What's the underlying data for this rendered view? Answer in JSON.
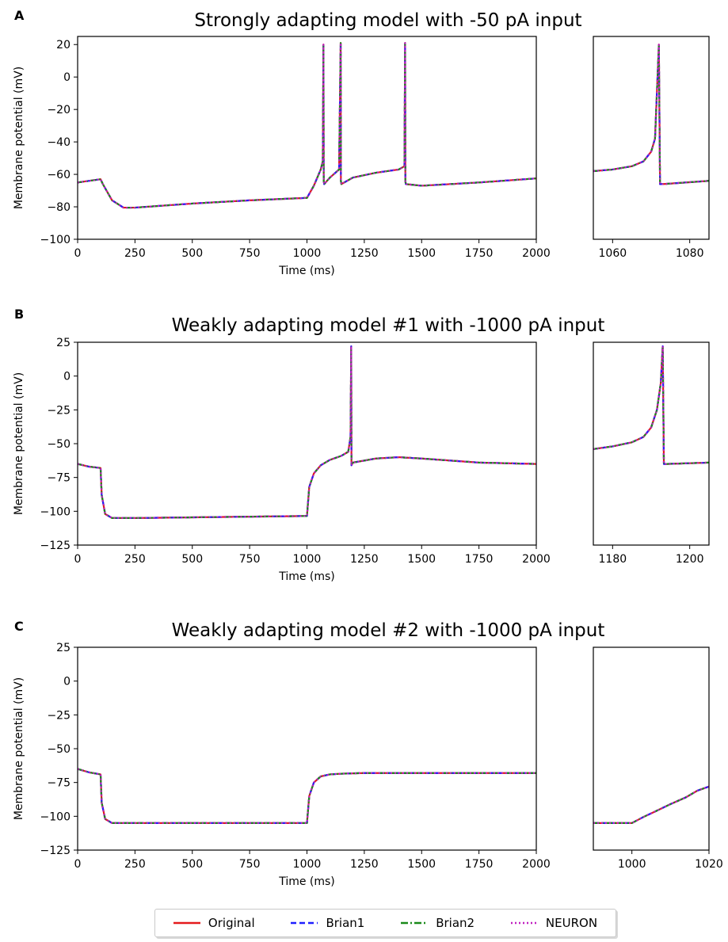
{
  "panels": [
    {
      "letter": "A",
      "title": "Strongly adapting model with -50 pA input",
      "main": {
        "xlabel": "Time (ms)",
        "ylabel": "Membrane potential (mV)",
        "xlim": [
          0,
          2000
        ],
        "ylim": [
          -100,
          25
        ],
        "xticks": [
          0,
          250,
          500,
          750,
          1000,
          1250,
          1500,
          1750,
          2000
        ],
        "yticks": [
          -100,
          -80,
          -60,
          -40,
          -20,
          0,
          20
        ]
      },
      "zoom": {
        "xlim": [
          1055,
          1085
        ],
        "xticks": [
          1060,
          1080
        ]
      }
    },
    {
      "letter": "B",
      "title": "Weakly adapting model #1 with -1000 pA input",
      "main": {
        "xlabel": "Time (ms)",
        "ylabel": "Membrane potential (mV)",
        "xlim": [
          0,
          2000
        ],
        "ylim": [
          -125,
          25
        ],
        "xticks": [
          0,
          250,
          500,
          750,
          1000,
          1250,
          1500,
          1750,
          2000
        ],
        "yticks": [
          -125,
          -100,
          -75,
          -50,
          -25,
          0,
          25
        ]
      },
      "zoom": {
        "xlim": [
          1175,
          1205
        ],
        "xticks": [
          1180,
          1200
        ]
      }
    },
    {
      "letter": "C",
      "title": "Weakly adapting model #2 with -1000 pA input",
      "main": {
        "xlabel": "Time (ms)",
        "ylabel": "Membrane potential (mV)",
        "xlim": [
          0,
          2000
        ],
        "ylim": [
          -125,
          25
        ],
        "xticks": [
          0,
          250,
          500,
          750,
          1000,
          1250,
          1500,
          1750,
          2000
        ],
        "yticks": [
          -125,
          -100,
          -75,
          -50,
          -25,
          0,
          25
        ]
      },
      "zoom": {
        "xlim": [
          990,
          1020
        ],
        "xticks": [
          1000,
          1020
        ]
      }
    }
  ],
  "legend": [
    {
      "label": "Original",
      "color": "#e41a1c",
      "dash": "solid"
    },
    {
      "label": "Brian1",
      "color": "#1f1fff",
      "dash": "dashed"
    },
    {
      "label": "Brian2",
      "color": "#1a8a1a",
      "dash": "dashdot"
    },
    {
      "label": "NEURON",
      "color": "#c020c0",
      "dash": "dotted"
    }
  ],
  "chart_data": [
    {
      "type": "line",
      "panel": "A",
      "title": "Strongly adapting model with -50 pA input",
      "xlabel": "Time (ms)",
      "ylabel": "Membrane potential (mV)",
      "xlim": [
        0,
        2000
      ],
      "ylim": [
        -100,
        25
      ],
      "series_names": [
        "Original",
        "Brian1",
        "Brian2",
        "NEURON"
      ],
      "x": [
        0,
        100,
        110,
        150,
        200,
        250,
        500,
        750,
        1000,
        1030,
        1060,
        1069,
        1072,
        1073,
        1075,
        1100,
        1140,
        1147,
        1148,
        1150,
        1200,
        1300,
        1400,
        1425,
        1428,
        1429,
        1431,
        1500,
        1750,
        2000
      ],
      "y": [
        -65,
        -63,
        -66,
        -76,
        -80.5,
        -80.5,
        -78,
        -76,
        -74.5,
        -67,
        -57,
        -52,
        20,
        -64,
        -66,
        -62,
        -57,
        21,
        -64,
        -66,
        -62,
        -59,
        -57,
        -55,
        21,
        -64,
        -66,
        -67,
        -65,
        -62.5
      ],
      "zoom": {
        "xlim": [
          1055,
          1085
        ],
        "x": [
          1055,
          1060,
          1065,
          1068,
          1070,
          1071,
          1072,
          1072.3,
          1073,
          1085
        ],
        "y": [
          -58,
          -57,
          -55,
          -52,
          -46,
          -38,
          20,
          -66,
          -66,
          -64
        ]
      }
    },
    {
      "type": "line",
      "panel": "B",
      "title": "Weakly adapting model #1 with -1000 pA input",
      "xlabel": "Time (ms)",
      "ylabel": "Membrane potential (mV)",
      "xlim": [
        0,
        2000
      ],
      "ylim": [
        -125,
        25
      ],
      "series_names": [
        "Original",
        "Brian1",
        "Brian2",
        "NEURON"
      ],
      "x": [
        0,
        50,
        100,
        105,
        120,
        150,
        250,
        500,
        750,
        1000,
        1010,
        1030,
        1060,
        1100,
        1150,
        1180,
        1190,
        1193,
        1194,
        1200,
        1300,
        1400,
        1500,
        1750,
        2000
      ],
      "y": [
        -65,
        -67,
        -68,
        -88,
        -102,
        -105,
        -105,
        -104.5,
        -104,
        -103.5,
        -82,
        -72,
        -66,
        -62,
        -59,
        -56,
        -45,
        22,
        -66,
        -64,
        -61,
        -60,
        -61,
        -64,
        -65
      ],
      "zoom": {
        "xlim": [
          1175,
          1205
        ],
        "x": [
          1175,
          1180,
          1185,
          1188,
          1190,
          1191.5,
          1192.5,
          1193,
          1193.3,
          1194,
          1205
        ],
        "y": [
          -54,
          -52,
          -49,
          -45,
          -38,
          -25,
          -5,
          22,
          -65,
          -65,
          -64
        ]
      }
    },
    {
      "type": "line",
      "panel": "C",
      "title": "Weakly adapting model #2 with -1000 pA input",
      "xlabel": "Time (ms)",
      "ylabel": "Membrane potential (mV)",
      "xlim": [
        0,
        2000
      ],
      "ylim": [
        -125,
        25
      ],
      "series_names": [
        "Original",
        "Brian1",
        "Brian2",
        "NEURON"
      ],
      "x": [
        0,
        50,
        100,
        105,
        120,
        150,
        250,
        500,
        750,
        1000,
        1010,
        1030,
        1060,
        1100,
        1150,
        1250,
        1500,
        1750,
        2000
      ],
      "y": [
        -65,
        -67.5,
        -69,
        -90,
        -102,
        -105,
        -105,
        -105,
        -105,
        -105,
        -85,
        -75,
        -70.5,
        -69,
        -68.5,
        -68,
        -68,
        -68,
        -68
      ],
      "zoom": {
        "xlim": [
          990,
          1020
        ],
        "x": [
          990,
          995,
          1000,
          1001,
          1003,
          1006,
          1010,
          1014,
          1017,
          1020
        ],
        "y": [
          -105,
          -105,
          -105,
          -103.5,
          -100.5,
          -96.5,
          -91,
          -86,
          -81,
          -78
        ]
      }
    }
  ]
}
